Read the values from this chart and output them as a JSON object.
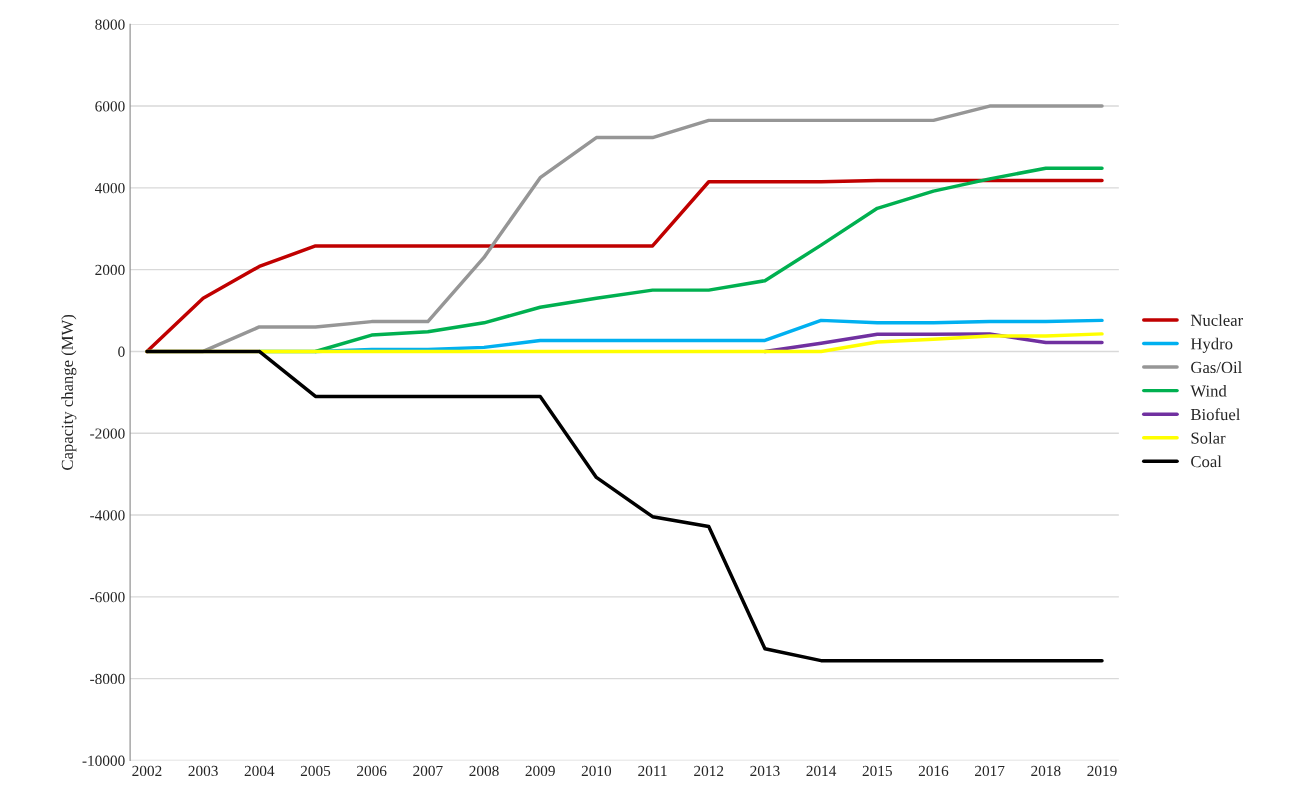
{
  "chart_data": {
    "type": "line",
    "ylabel": "Capacity change (MW)",
    "categories": [
      "2002",
      "2003",
      "2004",
      "2005",
      "2006",
      "2007",
      "2008",
      "2009",
      "2010",
      "2011",
      "2012",
      "2013",
      "2014",
      "2015",
      "2016",
      "2017",
      "2018",
      "2019"
    ],
    "series": [
      {
        "name": "Nuclear",
        "color": "#c00000",
        "values": [
          0,
          1300,
          2080,
          2580,
          2580,
          2580,
          2580,
          2580,
          2580,
          2580,
          4150,
          4150,
          4150,
          4180,
          4180,
          4180,
          4180,
          4180
        ]
      },
      {
        "name": "Hydro",
        "color": "#00b0f0",
        "values": [
          null,
          null,
          null,
          0,
          50,
          50,
          100,
          270,
          270,
          270,
          270,
          270,
          760,
          700,
          700,
          730,
          730,
          760
        ]
      },
      {
        "name": "Gas/Oil",
        "color": "#969696",
        "values": [
          0,
          0,
          600,
          600,
          730,
          730,
          2300,
          4250,
          5230,
          5230,
          5650,
          5650,
          5650,
          5650,
          5650,
          6000,
          6000,
          6000
        ]
      },
      {
        "name": "Wind",
        "color": "#00b050",
        "values": [
          null,
          null,
          0,
          0,
          400,
          480,
          700,
          1080,
          1300,
          1500,
          1500,
          1730,
          2600,
          3500,
          3920,
          4220,
          4480,
          4480
        ]
      },
      {
        "name": "Biofuel",
        "color": "#7030a0",
        "values": [
          null,
          null,
          null,
          null,
          null,
          null,
          null,
          null,
          null,
          null,
          null,
          0,
          200,
          420,
          420,
          430,
          220,
          220
        ]
      },
      {
        "name": "Solar",
        "color": "#ffff00",
        "values": [
          0,
          0,
          0,
          0,
          0,
          0,
          0,
          0,
          0,
          0,
          0,
          0,
          0,
          230,
          300,
          380,
          380,
          430
        ]
      },
      {
        "name": "Coal",
        "color": "#000000",
        "values": [
          0,
          0,
          0,
          -1100,
          -1100,
          -1100,
          -1100,
          -1100,
          -3080,
          -4040,
          -4280,
          -7270,
          -7560,
          -7560,
          -7560,
          -7560,
          -7560,
          -7560
        ]
      }
    ],
    "ylim": [
      -10000,
      8000
    ],
    "yticks": [
      -10000,
      -8000,
      -6000,
      -4000,
      -2000,
      0,
      2000,
      4000,
      6000,
      8000
    ],
    "grid": "y",
    "legend": "right",
    "line_style": "solid",
    "marker": "none"
  }
}
